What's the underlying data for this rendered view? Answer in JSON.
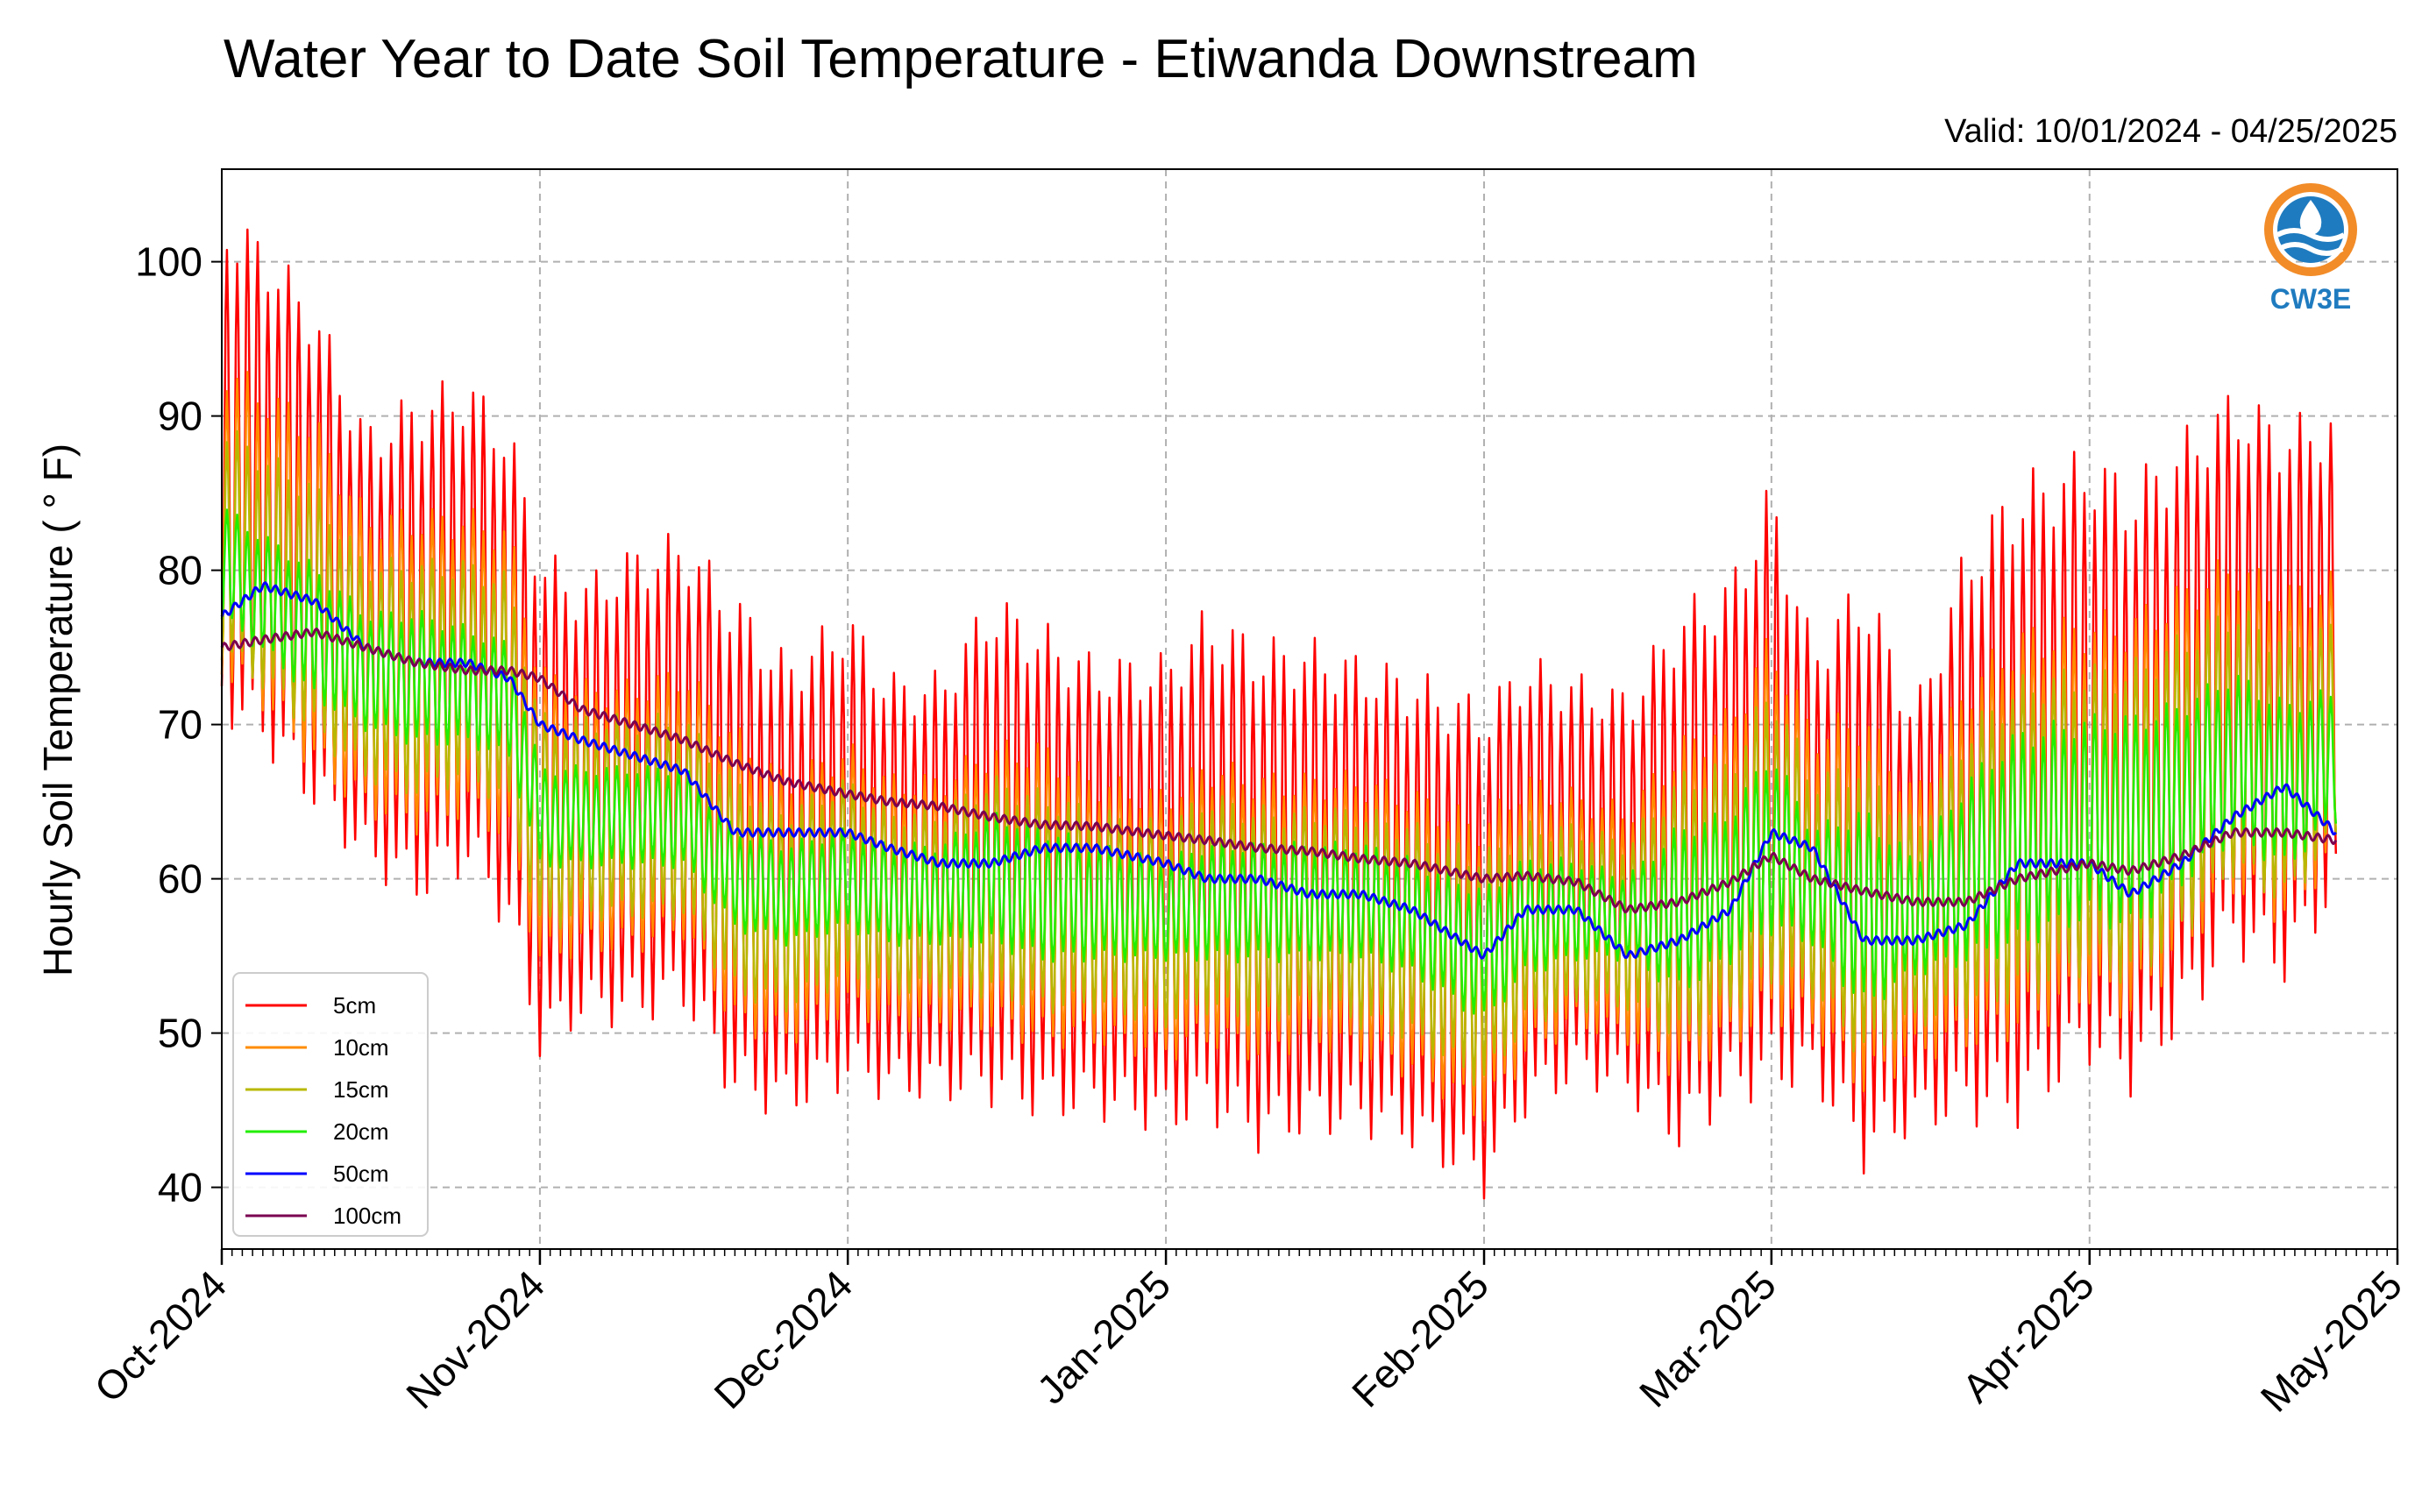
{
  "chart_data": {
    "type": "line",
    "title": "Water Year to Date Soil Temperature - Etiwanda Downstream",
    "subtitle": "Valid: 10/01/2024 - 04/25/2025",
    "ylabel": "Hourly Soil Temperature ( ° F)",
    "xlabel": "",
    "xlim": [
      "2024-10-01",
      "2025-05-01"
    ],
    "ylim": [
      36,
      106
    ],
    "y_ticks": [
      40,
      50,
      60,
      70,
      80,
      90,
      100
    ],
    "x_ticks": [
      {
        "date": "2024-10-01",
        "label": "Oct-2024"
      },
      {
        "date": "2024-11-01",
        "label": "Nov-2024"
      },
      {
        "date": "2024-12-01",
        "label": "Dec-2024"
      },
      {
        "date": "2025-01-01",
        "label": "Jan-2025"
      },
      {
        "date": "2025-02-01",
        "label": "Feb-2025"
      },
      {
        "date": "2025-03-01",
        "label": "Mar-2025"
      },
      {
        "date": "2025-04-01",
        "label": "Apr-2025"
      },
      {
        "date": "2025-05-01",
        "label": "May-2025"
      }
    ],
    "grid": true,
    "legend_position": "bottom-left",
    "x": [
      "2024-10-01",
      "2024-10-05",
      "2024-10-10",
      "2024-10-15",
      "2024-10-20",
      "2024-10-25",
      "2024-10-29",
      "2024-11-01",
      "2024-11-05",
      "2024-11-10",
      "2024-11-15",
      "2024-11-20",
      "2024-11-25",
      "2024-12-01",
      "2024-12-05",
      "2024-12-10",
      "2024-12-15",
      "2024-12-20",
      "2024-12-25",
      "2025-01-01",
      "2025-01-05",
      "2025-01-10",
      "2025-01-15",
      "2025-01-20",
      "2025-01-25",
      "2025-02-01",
      "2025-02-05",
      "2025-02-10",
      "2025-02-15",
      "2025-02-20",
      "2025-02-25",
      "2025-03-01",
      "2025-03-05",
      "2025-03-10",
      "2025-03-15",
      "2025-03-20",
      "2025-03-25",
      "2025-04-01",
      "2025-04-05",
      "2025-04-10",
      "2025-04-15",
      "2025-04-20",
      "2025-04-25"
    ],
    "series": [
      {
        "name": "5cm",
        "color": "#ff0000",
        "daily_max": [
          102,
          100,
          96,
          88,
          90,
          91,
          88,
          80,
          78,
          80,
          81,
          77,
          73,
          76,
          72,
          72,
          77,
          75,
          73,
          73,
          76,
          74,
          74,
          73,
          72,
          70,
          73,
          72,
          71,
          76,
          78,
          84,
          74,
          78,
          70,
          80,
          84,
          86,
          84,
          87,
          90,
          88,
          89
        ],
        "daily_min": [
          72,
          70,
          66,
          62,
          60,
          62,
          58,
          50,
          52,
          52,
          53,
          47,
          46,
          48,
          47,
          47,
          47,
          46,
          46,
          45,
          46,
          44,
          45,
          45,
          44,
          41,
          46,
          48,
          47,
          44,
          47,
          48,
          48,
          43,
          45,
          46,
          46,
          50,
          48,
          52,
          57,
          55,
          60
        ]
      },
      {
        "name": "10cm",
        "color": "#ff8c00",
        "daily_max": [
          93,
          91,
          89,
          83,
          83,
          83,
          82,
          73,
          72,
          72,
          73,
          69,
          66,
          68,
          66,
          66,
          68,
          68,
          66,
          65,
          67,
          66,
          66,
          66,
          65,
          63,
          66,
          65,
          64,
          68,
          70,
          75,
          69,
          70,
          65,
          72,
          75,
          76,
          76,
          78,
          80,
          78,
          79
        ],
        "daily_min": [
          74,
          72,
          68,
          65,
          64,
          65,
          63,
          55,
          56,
          56,
          57,
          51,
          50,
          52,
          51,
          51,
          51,
          50,
          50,
          49,
          50,
          49,
          50,
          49,
          48,
          45,
          49,
          51,
          50,
          48,
          50,
          52,
          51,
          47,
          49,
          50,
          51,
          53,
          52,
          56,
          60,
          58,
          62
        ]
      },
      {
        "name": "15cm",
        "color": "#b8b800",
        "daily_max": [
          89,
          87,
          85,
          80,
          80,
          80,
          79,
          70,
          70,
          70,
          70,
          66,
          64,
          66,
          64,
          64,
          66,
          65,
          64,
          63,
          65,
          64,
          64,
          64,
          63,
          61,
          63,
          63,
          62,
          66,
          67,
          72,
          66,
          67,
          63,
          69,
          72,
          73,
          73,
          75,
          77,
          75,
          76
        ],
        "daily_min": [
          75,
          73,
          70,
          67,
          66,
          67,
          65,
          57,
          58,
          58,
          58,
          53,
          52,
          54,
          53,
          53,
          53,
          52,
          52,
          51,
          52,
          51,
          52,
          51,
          50,
          47,
          51,
          52,
          52,
          50,
          52,
          54,
          53,
          49,
          51,
          52,
          53,
          55,
          54,
          57,
          61,
          59,
          63
        ]
      },
      {
        "name": "20cm",
        "color": "#22ee00",
        "daily_max": [
          84,
          82,
          80,
          77,
          77,
          76,
          75,
          67,
          67,
          67,
          67,
          63,
          62,
          63,
          62,
          62,
          64,
          63,
          62,
          61,
          62,
          62,
          62,
          62,
          61,
          59,
          61,
          61,
          60,
          63,
          64,
          68,
          63,
          64,
          61,
          66,
          69,
          70,
          70,
          71,
          73,
          71,
          72
        ],
        "daily_min": [
          77,
          75,
          72,
          70,
          69,
          69,
          68,
          61,
          61,
          61,
          61,
          57,
          56,
          57,
          56,
          56,
          56,
          55,
          55,
          55,
          55,
          55,
          55,
          55,
          54,
          51,
          54,
          55,
          55,
          53,
          55,
          57,
          56,
          52,
          54,
          55,
          56,
          58,
          57,
          60,
          63,
          61,
          64
        ]
      },
      {
        "name": "50cm",
        "color": "#0000ff",
        "values": [
          77,
          79,
          78,
          75,
          74,
          74,
          73,
          70,
          69,
          68,
          67,
          63,
          63,
          63,
          62,
          61,
          61,
          62,
          62,
          61,
          60,
          60,
          59,
          59,
          58,
          55,
          58,
          58,
          55,
          56,
          58,
          63,
          62,
          56,
          56,
          57,
          61,
          61,
          59,
          61,
          64,
          66,
          63
        ]
      },
      {
        "name": "100cm",
        "color": "#7a0050",
        "values": [
          75,
          75.5,
          76,
          75,
          74,
          73.5,
          73.5,
          73,
          71,
          70,
          69,
          67.5,
          66.3,
          65.5,
          65,
          64.7,
          64,
          63.5,
          63.4,
          62.8,
          62.5,
          62,
          61.8,
          61.3,
          61,
          60,
          60.2,
          59.8,
          58,
          58.5,
          59.8,
          61.5,
          60,
          59.2,
          58.5,
          58.5,
          60,
          61,
          60.5,
          61.5,
          63,
          63,
          62.5
        ]
      }
    ]
  },
  "logo": {
    "text": "CW3E",
    "colors": {
      "orange": "#f28c28",
      "blue": "#1f7bbf"
    }
  }
}
